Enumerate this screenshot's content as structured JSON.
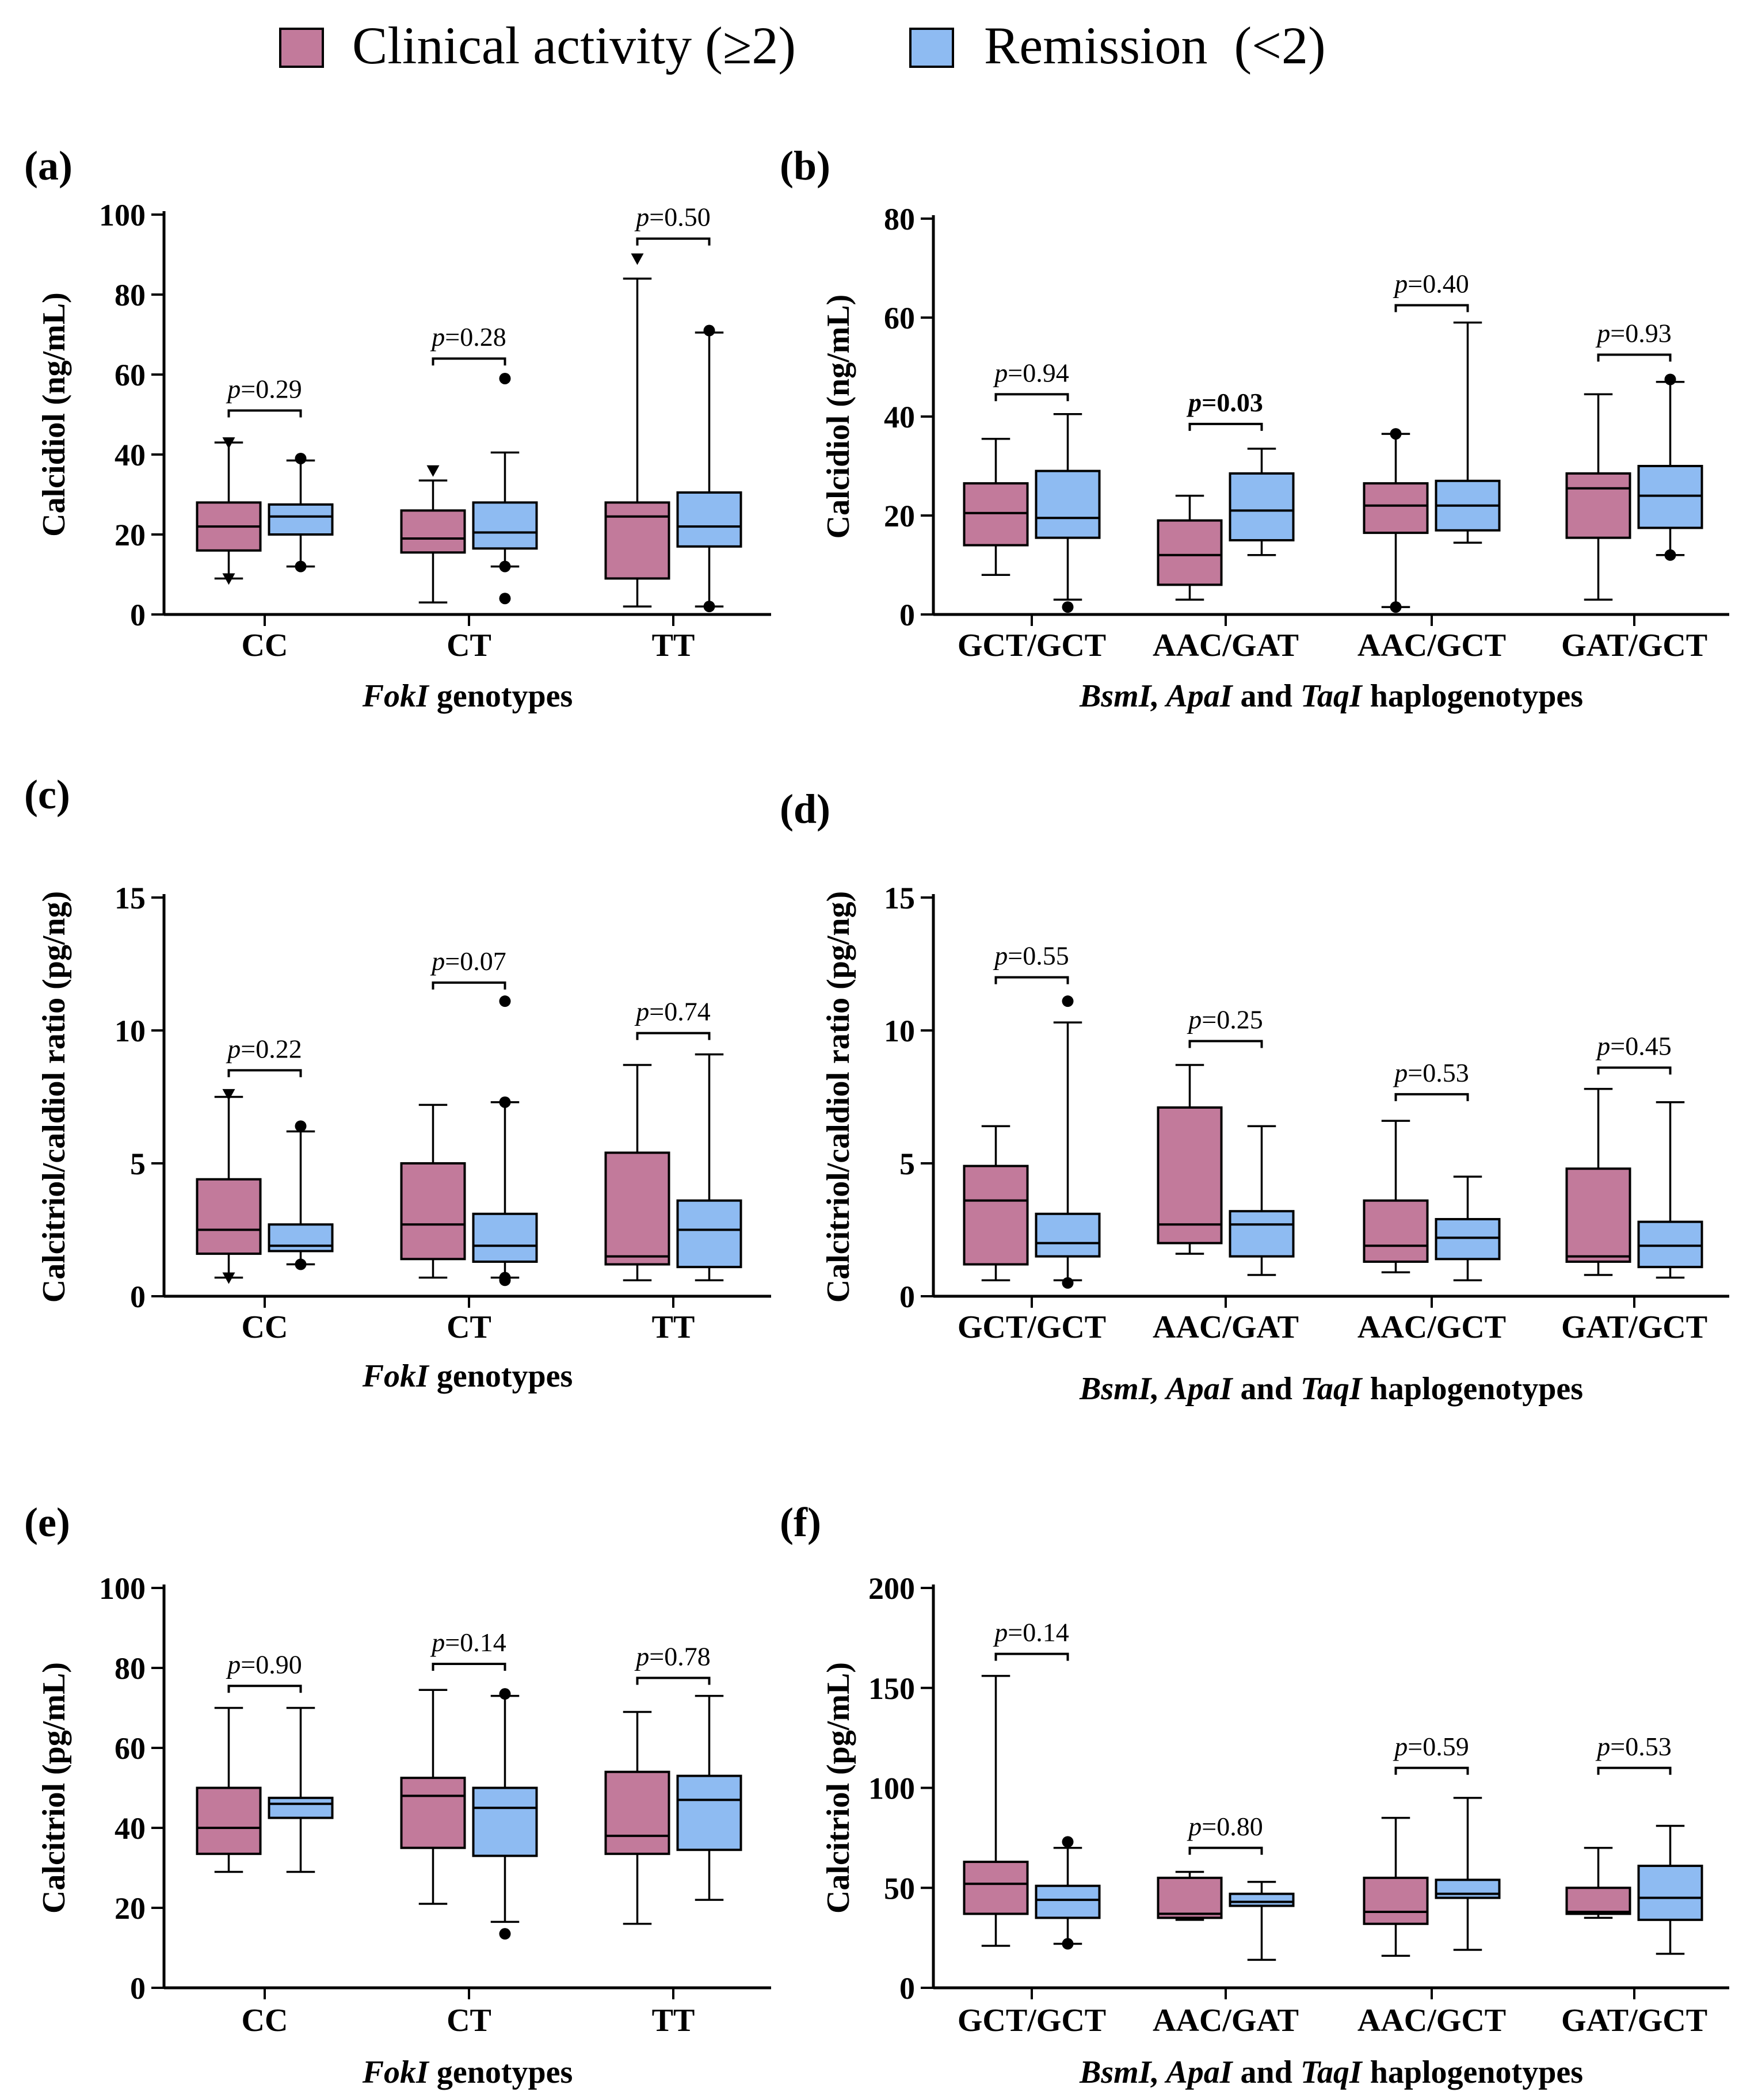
{
  "legend": {
    "items": [
      {
        "label": "Clinical activity (≥2)",
        "color": "#c27a9b"
      },
      {
        "label": "Remission  (<2)",
        "color": "#8ebbf2"
      }
    ]
  },
  "chart_data": [
    {
      "panel": "(a)",
      "type": "box",
      "ylabel": "Calcidiol (ng/mL)",
      "xlabel_parts": [
        {
          "text": "FokI",
          "italic": true
        },
        {
          "text": " genotypes",
          "italic": false
        }
      ],
      "ylim": [
        0,
        100
      ],
      "yticks": [
        0,
        20,
        40,
        60,
        80,
        100
      ],
      "categories": [
        "CC",
        "CT",
        "TT"
      ],
      "series": [
        {
          "name": "Clinical activity (≥2)",
          "marker": "triangle",
          "boxes": [
            {
              "min": 9,
              "q1": 16,
              "median": 22,
              "q3": 28,
              "max": 43,
              "outliers": [
                9,
                43
              ]
            },
            {
              "min": 3,
              "q1": 15.5,
              "median": 19,
              "q3": 26,
              "max": 33.5,
              "outliers": [
                36
              ]
            },
            {
              "min": 2,
              "q1": 9,
              "median": 24.5,
              "q3": 28,
              "max": 84,
              "outliers": [
                89
              ]
            }
          ]
        },
        {
          "name": "Remission (<2)",
          "marker": "circle",
          "boxes": [
            {
              "min": 12,
              "q1": 20,
              "median": 24.5,
              "q3": 27.5,
              "max": 38.5,
              "outliers": [
                12,
                39
              ]
            },
            {
              "min": 12,
              "q1": 16.5,
              "median": 20.5,
              "q3": 28,
              "max": 40.5,
              "outliers": [
                4,
                12,
                59
              ]
            },
            {
              "min": 2,
              "q1": 17,
              "median": 22,
              "q3": 30.5,
              "max": 70.5,
              "outliers": [
                2,
                71
              ]
            }
          ]
        }
      ],
      "pvalues": [
        {
          "text": "=0.29",
          "level": 51,
          "bold": false
        },
        {
          "text": "=0.28",
          "level": 64,
          "bold": false
        },
        {
          "text": "=0.50",
          "level": 94,
          "bold": false
        }
      ]
    },
    {
      "panel": "(b)",
      "type": "box",
      "ylabel": "Calcidiol (ng/mL)",
      "xlabel_parts": [
        {
          "text": "BsmI, ApaI",
          "italic": true
        },
        {
          "text": " and ",
          "italic": false
        },
        {
          "text": "TaqI",
          "italic": true
        },
        {
          "text": " haplogenotypes",
          "italic": false
        }
      ],
      "ylim": [
        0,
        80
      ],
      "yticks": [
        0,
        20,
        40,
        60,
        80
      ],
      "categories": [
        "GCT/GCT",
        "AAC/GAT",
        "AAC/GCT",
        "GAT/GCT"
      ],
      "series": [
        {
          "name": "Clinical activity (≥2)",
          "marker": "circle",
          "boxes": [
            {
              "min": 8,
              "q1": 14,
              "median": 20.5,
              "q3": 26.5,
              "max": 35.5,
              "outliers": []
            },
            {
              "min": 3,
              "q1": 6,
              "median": 12,
              "q3": 19,
              "max": 24,
              "outliers": []
            },
            {
              "min": 1.5,
              "q1": 16.5,
              "median": 22,
              "q3": 26.5,
              "max": 36.5,
              "outliers": [
                1.5,
                36.5
              ]
            },
            {
              "min": 3,
              "q1": 15.5,
              "median": 25.5,
              "q3": 28.5,
              "max": 44.5,
              "outliers": []
            }
          ]
        },
        {
          "name": "Remission (<2)",
          "marker": "circle",
          "boxes": [
            {
              "min": 3,
              "q1": 15.5,
              "median": 19.5,
              "q3": 29,
              "max": 40.5,
              "outliers": [
                1.5
              ]
            },
            {
              "min": 12,
              "q1": 15,
              "median": 21,
              "q3": 28.5,
              "max": 33.5,
              "outliers": []
            },
            {
              "min": 14.5,
              "q1": 17,
              "median": 22,
              "q3": 27,
              "max": 59,
              "outliers": []
            },
            {
              "min": 12,
              "q1": 17.5,
              "median": 24,
              "q3": 30,
              "max": 47,
              "outliers": [
                12,
                47.5
              ]
            }
          ]
        }
      ],
      "pvalues": [
        {
          "text": "=0.94",
          "level": 44.5,
          "bold": false
        },
        {
          "text": "=0.03",
          "level": 38.5,
          "bold": true
        },
        {
          "text": "=0.40",
          "level": 62.5,
          "bold": false
        },
        {
          "text": "=0.93",
          "level": 52.5,
          "bold": false
        }
      ]
    },
    {
      "panel": "(c)",
      "type": "box",
      "ylabel": "Calcitriol/caldiol ratio (pg/ng)",
      "xlabel_parts": [
        {
          "text": "FokI",
          "italic": true
        },
        {
          "text": " genotypes",
          "italic": false
        }
      ],
      "ylim": [
        0,
        15
      ],
      "yticks": [
        0,
        5,
        10,
        15
      ],
      "categories": [
        "CC",
        "CT",
        "TT"
      ],
      "series": [
        {
          "name": "Clinical activity (≥2)",
          "marker": "triangle",
          "boxes": [
            {
              "min": 0.7,
              "q1": 1.6,
              "median": 2.5,
              "q3": 4.4,
              "max": 7.5,
              "outliers": [
                0.7,
                7.6
              ]
            },
            {
              "min": 0.7,
              "q1": 1.4,
              "median": 2.7,
              "q3": 5.0,
              "max": 7.2,
              "outliers": []
            },
            {
              "min": 0.6,
              "q1": 1.2,
              "median": 1.5,
              "q3": 5.4,
              "max": 8.7,
              "outliers": []
            }
          ]
        },
        {
          "name": "Remission (<2)",
          "marker": "circle",
          "boxes": [
            {
              "min": 1.2,
              "q1": 1.7,
              "median": 1.9,
              "q3": 2.7,
              "max": 6.2,
              "outliers": [
                1.2,
                6.4
              ]
            },
            {
              "min": 0.7,
              "q1": 1.3,
              "median": 1.9,
              "q3": 3.1,
              "max": 7.3,
              "outliers": [
                0.6,
                0.7,
                7.3,
                11.1
              ]
            },
            {
              "min": 0.6,
              "q1": 1.1,
              "median": 2.5,
              "q3": 3.6,
              "max": 9.1,
              "outliers": []
            }
          ]
        }
      ],
      "pvalues": [
        {
          "text": "=0.22",
          "level": 8.5,
          "bold": false
        },
        {
          "text": "=0.07",
          "level": 11.8,
          "bold": false
        },
        {
          "text": "=0.74",
          "level": 9.9,
          "bold": false
        }
      ]
    },
    {
      "panel": "(d)",
      "type": "box",
      "ylabel": "Calcitriol/caldiol ratio (pg/ng)",
      "xlabel_parts": [
        {
          "text": "BsmI, ApaI",
          "italic": true
        },
        {
          "text": " and ",
          "italic": false
        },
        {
          "text": "TaqI",
          "italic": true
        },
        {
          "text": " haplogenotypes",
          "italic": false
        }
      ],
      "ylim": [
        0,
        15
      ],
      "yticks": [
        0,
        5,
        10,
        15
      ],
      "categories": [
        "GCT/GCT",
        "AAC/GAT",
        "AAC/GCT",
        "GAT/GCT"
      ],
      "series": [
        {
          "name": "Clinical activity (≥2)",
          "marker": "circle",
          "boxes": [
            {
              "min": 0.6,
              "q1": 1.2,
              "median": 3.6,
              "q3": 4.9,
              "max": 6.4,
              "outliers": []
            },
            {
              "min": 1.6,
              "q1": 2.0,
              "median": 2.7,
              "q3": 7.1,
              "max": 8.7,
              "outliers": []
            },
            {
              "min": 0.9,
              "q1": 1.3,
              "median": 1.9,
              "q3": 3.6,
              "max": 6.6,
              "outliers": []
            },
            {
              "min": 0.8,
              "q1": 1.3,
              "median": 1.5,
              "q3": 4.8,
              "max": 7.8,
              "outliers": []
            }
          ]
        },
        {
          "name": "Remission (<2)",
          "marker": "circle",
          "boxes": [
            {
              "min": 0.6,
              "q1": 1.5,
              "median": 2.0,
              "q3": 3.1,
              "max": 10.3,
              "outliers": [
                0.5,
                11.1
              ]
            },
            {
              "min": 0.8,
              "q1": 1.5,
              "median": 2.7,
              "q3": 3.2,
              "max": 6.4,
              "outliers": []
            },
            {
              "min": 0.6,
              "q1": 1.4,
              "median": 2.2,
              "q3": 2.9,
              "max": 4.5,
              "outliers": []
            },
            {
              "min": 0.7,
              "q1": 1.1,
              "median": 1.9,
              "q3": 2.8,
              "max": 7.3,
              "outliers": []
            }
          ]
        }
      ],
      "pvalues": [
        {
          "text": "=0.55",
          "level": 12.0,
          "bold": false
        },
        {
          "text": "=0.25",
          "level": 9.6,
          "bold": false
        },
        {
          "text": "=0.53",
          "level": 7.6,
          "bold": false
        },
        {
          "text": "=0.45",
          "level": 8.6,
          "bold": false
        }
      ]
    },
    {
      "panel": "(e)",
      "type": "box",
      "ylabel": "Calcitriol (pg/mL)",
      "xlabel_parts": [
        {
          "text": "FokI",
          "italic": true
        },
        {
          "text": " genotypes",
          "italic": false
        }
      ],
      "ylim": [
        0,
        100
      ],
      "yticks": [
        0,
        20,
        40,
        60,
        80,
        100
      ],
      "categories": [
        "CC",
        "CT",
        "TT"
      ],
      "series": [
        {
          "name": "Clinical activity (≥2)",
          "marker": "circle",
          "boxes": [
            {
              "min": 29,
              "q1": 33.5,
              "median": 40,
              "q3": 50,
              "max": 70,
              "outliers": []
            },
            {
              "min": 21,
              "q1": 35,
              "median": 48,
              "q3": 52.5,
              "max": 74.5,
              "outliers": []
            },
            {
              "min": 16,
              "q1": 33.5,
              "median": 38,
              "q3": 54,
              "max": 69,
              "outliers": []
            }
          ]
        },
        {
          "name": "Remission (<2)",
          "marker": "circle",
          "boxes": [
            {
              "min": 29,
              "q1": 42.5,
              "median": 46,
              "q3": 47.5,
              "max": 70,
              "outliers": []
            },
            {
              "min": 16.5,
              "q1": 33,
              "median": 45,
              "q3": 50,
              "max": 73,
              "outliers": [
                13.5,
                73.5
              ]
            },
            {
              "min": 22,
              "q1": 34.5,
              "median": 47,
              "q3": 53,
              "max": 73,
              "outliers": []
            }
          ]
        }
      ],
      "pvalues": [
        {
          "text": "=0.90",
          "level": 75.5,
          "bold": false
        },
        {
          "text": "=0.14",
          "level": 81,
          "bold": false
        },
        {
          "text": "=0.78",
          "level": 77.5,
          "bold": false
        }
      ]
    },
    {
      "panel": "(f)",
      "type": "box",
      "ylabel": "Calcitriol (pg/mL)",
      "xlabel_parts": [
        {
          "text": "BsmI, ApaI",
          "italic": true
        },
        {
          "text": " and ",
          "italic": false
        },
        {
          "text": "TaqI",
          "italic": true
        },
        {
          "text": " haplogenotypes",
          "italic": false
        }
      ],
      "ylim": [
        0,
        200
      ],
      "yticks": [
        0,
        50,
        100,
        150,
        200
      ],
      "categories": [
        "GCT/GCT",
        "AAC/GAT",
        "AAC/GCT",
        "GAT/GCT"
      ],
      "series": [
        {
          "name": "Clinical activity (≥2)",
          "marker": "circle",
          "boxes": [
            {
              "min": 21,
              "q1": 37,
              "median": 52,
              "q3": 63,
              "max": 156,
              "outliers": []
            },
            {
              "min": 34,
              "q1": 35,
              "median": 37,
              "q3": 55,
              "max": 58,
              "outliers": []
            },
            {
              "min": 16,
              "q1": 32,
              "median": 38,
              "q3": 55,
              "max": 85,
              "outliers": []
            },
            {
              "min": 35,
              "q1": 37,
              "median": 38,
              "q3": 50,
              "max": 70,
              "outliers": []
            }
          ]
        },
        {
          "name": "Remission (<2)",
          "marker": "circle",
          "boxes": [
            {
              "min": 22,
              "q1": 35,
              "median": 44,
              "q3": 51,
              "max": 70,
              "outliers": [
                22,
                73
              ]
            },
            {
              "min": 14,
              "q1": 41,
              "median": 43,
              "q3": 47,
              "max": 53,
              "outliers": []
            },
            {
              "min": 19,
              "q1": 45,
              "median": 47,
              "q3": 54,
              "max": 95,
              "outliers": []
            },
            {
              "min": 17,
              "q1": 34,
              "median": 45,
              "q3": 61,
              "max": 81,
              "outliers": []
            }
          ]
        }
      ],
      "pvalues": [
        {
          "text": "=0.14",
          "level": 167,
          "bold": false
        },
        {
          "text": "=0.80",
          "level": 70,
          "bold": false
        },
        {
          "text": "=0.59",
          "level": 110,
          "bold": false
        },
        {
          "text": "=0.53",
          "level": 110,
          "bold": false
        }
      ]
    }
  ]
}
